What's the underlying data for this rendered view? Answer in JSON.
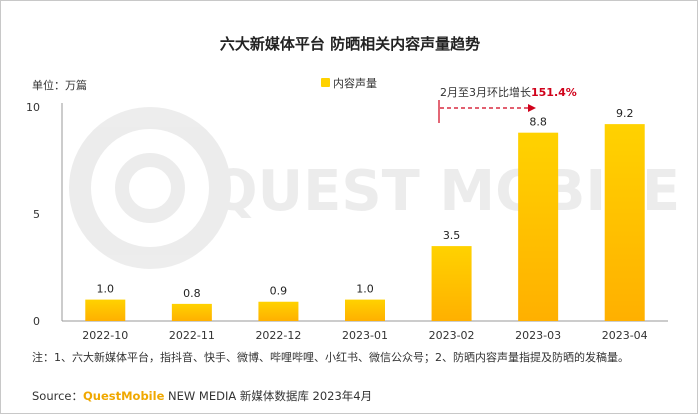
{
  "title": "六大新媒体平台 防晒相关内容声量趋势",
  "note": "注：1、六大新媒体平台，指抖音、快手、微博、哔哩哔哩、小红书、微信公众号；2、防晒内容声量指提及防晒的发稿量。",
  "source": {
    "prefix": "Source：",
    "brand": "QuestMobile",
    "suffix": " NEW MEDIA 新媒体数据库 2023年4月"
  },
  "watermark": "QUEST MOBILE",
  "annotation": {
    "text": "2月至3月环比增长",
    "value": "151.4%"
  },
  "colors": {
    "bar_top": "#ffd200",
    "bar_bottom": "#ffb000",
    "annotation": "#d0021b",
    "axis": "#999999"
  },
  "chart_data": {
    "type": "bar",
    "ylabel": "单位：万篇",
    "ylim": [
      0,
      10
    ],
    "yticks": [
      0,
      5,
      10
    ],
    "legend": {
      "label": "内容声量",
      "placement": "top-center"
    },
    "categories": [
      "2022-10",
      "2022-11",
      "2022-12",
      "2023-01",
      "2023-02",
      "2023-03",
      "2023-04"
    ],
    "series": [
      {
        "name": "内容声量",
        "values": [
          1.0,
          0.8,
          0.9,
          1.0,
          3.5,
          8.8,
          9.2
        ]
      }
    ],
    "value_labels": [
      "1.0",
      "0.8",
      "0.9",
      "1.0",
      "3.5",
      "8.8",
      "9.2"
    ]
  }
}
